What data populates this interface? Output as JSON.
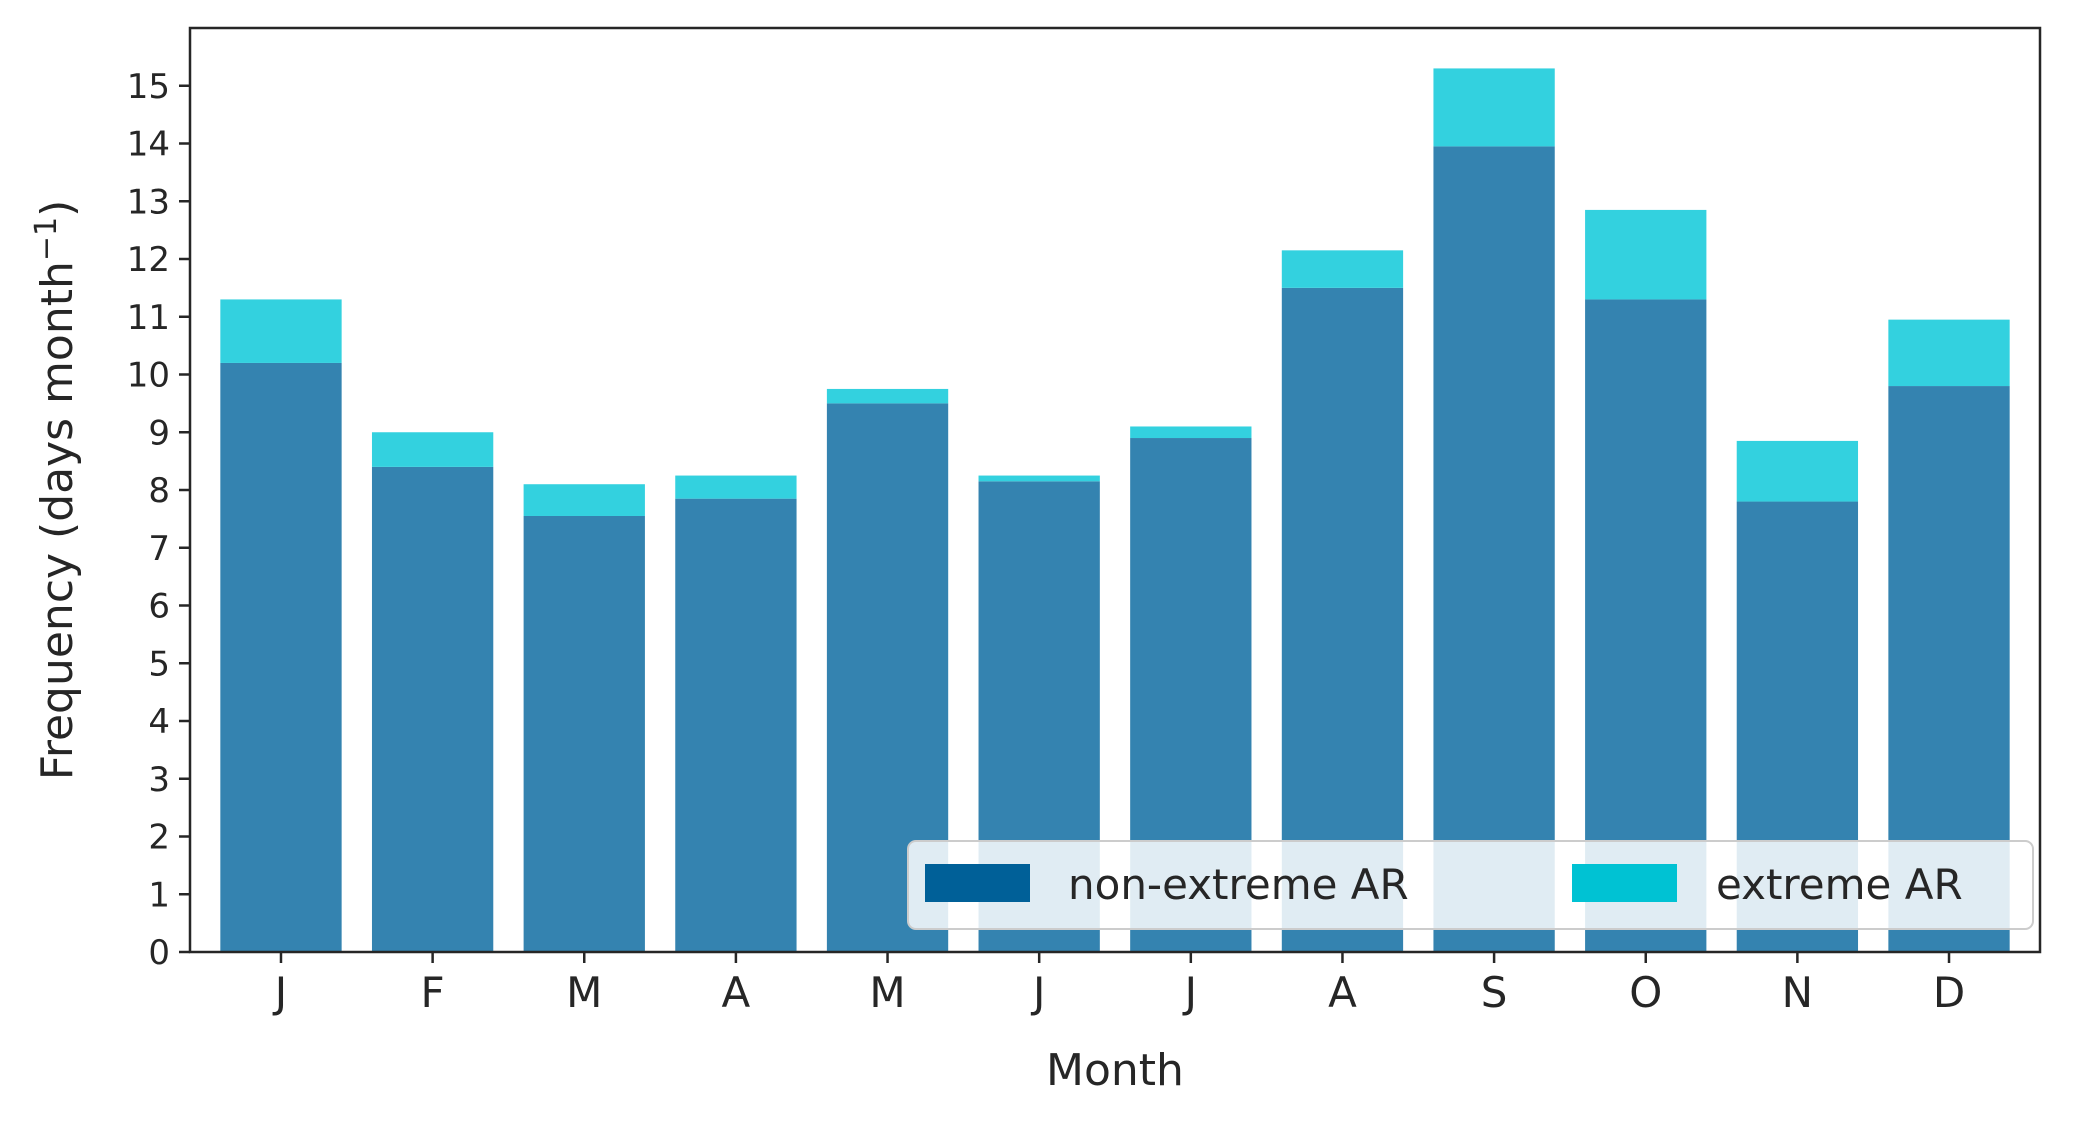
{
  "chart_data": {
    "type": "bar",
    "stacked": true,
    "categories": [
      "J",
      "F",
      "M",
      "A",
      "M",
      "J",
      "J",
      "A",
      "S",
      "O",
      "N",
      "D"
    ],
    "series": [
      {
        "name": "non-extreme AR",
        "color": "#3483b0",
        "legend_color": "#006098",
        "values": [
          10.2,
          8.4,
          7.55,
          7.85,
          9.5,
          8.15,
          8.9,
          11.5,
          13.95,
          11.3,
          7.8,
          9.8
        ]
      },
      {
        "name": "extreme AR",
        "color": "#33d1df",
        "legend_color": "#00c2d3",
        "values": [
          1.1,
          0.6,
          0.55,
          0.4,
          0.25,
          0.1,
          0.2,
          0.65,
          1.35,
          1.55,
          1.05,
          1.15
        ]
      }
    ],
    "xlabel": "Month",
    "ylabel": "Frequency (days month",
    "ylabel_superscript": "−1",
    "ylabel_close": ")",
    "ylim": [
      0,
      16
    ],
    "yticks": [
      "0",
      "1",
      "2",
      "3",
      "4",
      "5",
      "6",
      "7",
      "8",
      "9",
      "10",
      "11",
      "12",
      "13",
      "14",
      "15"
    ],
    "grid": false,
    "legend_position": "lower-right",
    "legend_columns": 2
  }
}
